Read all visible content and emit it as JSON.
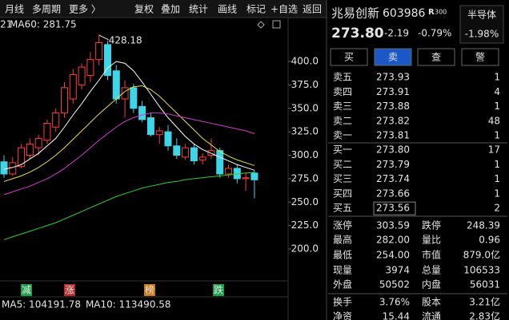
{
  "toolbar": {
    "left": [
      "月线",
      "多周期",
      "更多 〉"
    ],
    "right": [
      "复权",
      "叠加",
      "统计",
      "画线",
      "标记",
      "+自选",
      "返回"
    ]
  },
  "chart": {
    "type": "candlestick",
    "header_cut": "21",
    "header_ma": "MA60: 281.75",
    "peak_label": "428.18",
    "up_color": "#ff3b3b",
    "down_color": "#3fd5e8",
    "ylim": [
      166,
      446.8
    ],
    "yticks": [
      {
        "value": 400,
        "label": "400.0"
      },
      {
        "value": 375,
        "label": "375.0"
      },
      {
        "value": 350,
        "label": "350.0"
      },
      {
        "value": 325,
        "label": "325.0"
      },
      {
        "value": 300,
        "label": "300.0"
      },
      {
        "value": 275,
        "label": "275.0"
      },
      {
        "value": 250,
        "label": "250.0"
      },
      {
        "value": 225,
        "label": "225.0"
      },
      {
        "value": 200,
        "label": "200.0"
      }
    ],
    "candles": [
      [
        293,
        300,
        276,
        280
      ],
      [
        280,
        298,
        278,
        292
      ],
      [
        288,
        312,
        286,
        308
      ],
      [
        300,
        318,
        296,
        312
      ],
      [
        308,
        322,
        300,
        318
      ],
      [
        316,
        338,
        312,
        334
      ],
      [
        330,
        350,
        325,
        345
      ],
      [
        345,
        378,
        340,
        372
      ],
      [
        360,
        392,
        355,
        386
      ],
      [
        375,
        398,
        370,
        394
      ],
      [
        385,
        410,
        378,
        402
      ],
      [
        402,
        428.18,
        396,
        420
      ],
      [
        418,
        422,
        380,
        385
      ],
      [
        390,
        396,
        355,
        360
      ],
      [
        360,
        380,
        340,
        372
      ],
      [
        372,
        376,
        345,
        350
      ],
      [
        352,
        358,
        335,
        338
      ],
      [
        340,
        345,
        320,
        322
      ],
      [
        322,
        330,
        312,
        326
      ],
      [
        325,
        332,
        305,
        310
      ],
      [
        310,
        318,
        296,
        300
      ],
      [
        298,
        312,
        295,
        308
      ],
      [
        308,
        312,
        290,
        294
      ],
      [
        295,
        302,
        290,
        298
      ],
      [
        300,
        318,
        296,
        305
      ],
      [
        305,
        308,
        276,
        280
      ],
      [
        280,
        290,
        276,
        286
      ],
      [
        286,
        290,
        270,
        275
      ],
      [
        275,
        282,
        262,
        276
      ],
      [
        281,
        284,
        254,
        273.8
      ]
    ],
    "ma_lines": [
      {
        "color": "#ffffff",
        "values": [
          285,
          287,
          290,
          296,
          302,
          310,
          318,
          330,
          343,
          355,
          368,
          380,
          393,
          400,
          398,
          390,
          378,
          365,
          352,
          340,
          330,
          320,
          312,
          306,
          302,
          298,
          294,
          290,
          287,
          284
        ]
      },
      {
        "color": "#e8e04a",
        "values": [
          272,
          275,
          278,
          282,
          287,
          293,
          300,
          308,
          317,
          326,
          335,
          344,
          352,
          360,
          368,
          373,
          374,
          370,
          363,
          354,
          345,
          336,
          327,
          318,
          311,
          304,
          299,
          295,
          292,
          289
        ]
      },
      {
        "color": "#d23bd2",
        "values": [
          258,
          261,
          264,
          267,
          271,
          275,
          280,
          286,
          293,
          300,
          308,
          316,
          323,
          330,
          336,
          340,
          343,
          345,
          345,
          344,
          342,
          340,
          338,
          336,
          334,
          332,
          330,
          328,
          326,
          323
        ]
      },
      {
        "color": "#2fd12f",
        "values": [
          210,
          213,
          216,
          219,
          222,
          225,
          228,
          232,
          236,
          240,
          244,
          248,
          252,
          256,
          259,
          262,
          265,
          267,
          269,
          271,
          272,
          274,
          275,
          276,
          277,
          278,
          279,
          280,
          281,
          281.75
        ]
      }
    ],
    "events": [
      {
        "label": "减",
        "color": "#1e9e4a"
      },
      {
        "label": "涨",
        "color": "#b52a2a"
      },
      {
        "label": "榜",
        "color": "#c9781a"
      },
      {
        "label": "跌",
        "color": "#1e9e4a"
      }
    ],
    "volume_ma": [
      {
        "text": "MA5: 104191.78",
        "color": "#e8e04a"
      },
      {
        "text": "MA10: 113490.58",
        "color": "#d23bd2"
      }
    ]
  },
  "quote": {
    "name": "兆易创新",
    "code": "603986",
    "badge": "R",
    "badge_sub": "300",
    "sector": "半导体",
    "sector_change": "-1.98%",
    "price": "273.80",
    "change": "-2.19",
    "change_pct": "-0.79%",
    "buttons": [
      "买",
      "卖",
      "查",
      "警"
    ]
  },
  "order_book": {
    "asks": [
      [
        "卖五",
        "273.93",
        "1"
      ],
      [
        "卖四",
        "273.91",
        "4"
      ],
      [
        "卖三",
        "273.88",
        "1"
      ],
      [
        "卖二",
        "273.82",
        "48"
      ],
      [
        "卖一",
        "273.81",
        "1"
      ]
    ],
    "bids": [
      [
        "买一",
        "273.80",
        "17"
      ],
      [
        "买二",
        "273.79",
        "1"
      ],
      [
        "买三",
        "273.74",
        "1"
      ],
      [
        "买四",
        "273.66",
        "1"
      ],
      [
        "买五",
        "273.56",
        "2"
      ]
    ]
  },
  "stats": [
    [
      {
        "label": "涨停",
        "value": "303.59",
        "color": "#ff3b3b"
      },
      {
        "label": "跌停",
        "value": "248.39",
        "color": "#2fd12f"
      }
    ],
    [
      {
        "label": "最高",
        "value": "282.00",
        "color": "#ff3b3b"
      },
      {
        "label": "量比",
        "value": "0.96",
        "color": "#2fd12f"
      }
    ],
    [
      {
        "label": "最低",
        "value": "254.00",
        "color": "#2fd12f"
      },
      {
        "label": "市值",
        "value": "879.0亿",
        "color": "#ffffff"
      }
    ],
    [
      {
        "label": "现量",
        "value": "3974",
        "color": "#a040e0"
      },
      {
        "label": "总量",
        "value": "106533",
        "color": "#ffffff"
      }
    ],
    [
      {
        "label": "外盘",
        "value": "50502",
        "color": "#ff3b3b"
      },
      {
        "label": "内盘",
        "value": "56031",
        "color": "#2fd12f"
      }
    ],
    [
      {
        "label": "换手",
        "value": "3.76%",
        "color": "#ffffff"
      },
      {
        "label": "股本",
        "value": "3.21亿",
        "color": "#ffffff"
      }
    ],
    [
      {
        "label": "净资",
        "value": "15.44",
        "color": "#ffffff"
      },
      {
        "label": "流通",
        "value": "2.83亿",
        "color": "#ffffff"
      }
    ]
  ]
}
